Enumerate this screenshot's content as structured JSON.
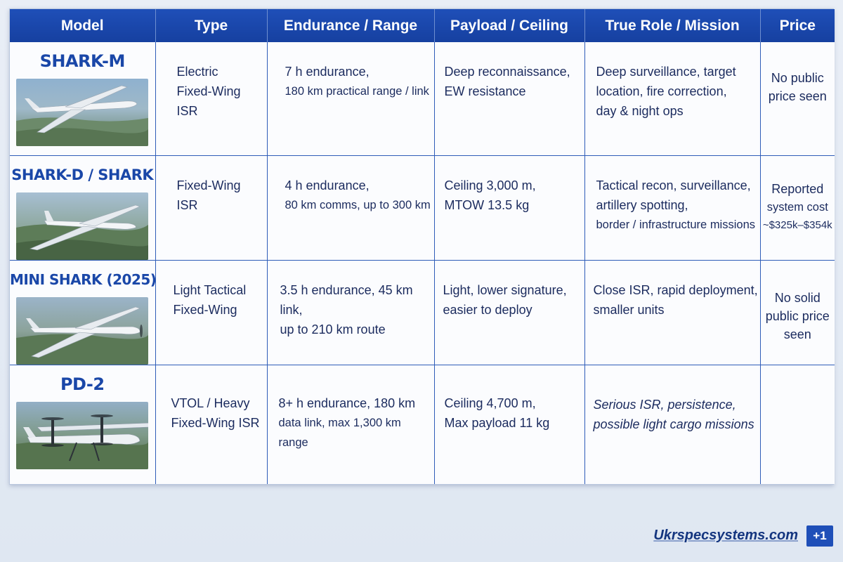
{
  "headers": {
    "model": "Model",
    "type": "Type",
    "endurance": "Endurance / Range",
    "payload": "Payload / Ceiling",
    "role": "True Role / Mission",
    "price": "Price"
  },
  "rows": [
    {
      "model": "SHARK-M",
      "type": [
        "Electric",
        "Fixed-Wing",
        "ISR"
      ],
      "endurance": [
        "7 h endurance,",
        "180 km practical range / link"
      ],
      "payload": [
        "Deep reconnaissance,",
        "EW resistance"
      ],
      "role": [
        "Deep surveillance, target",
        "location, fire correction,",
        "day & night ops"
      ],
      "price": [
        "No public",
        "price seen"
      ],
      "image_icon": "fixed-wing-drone-photo"
    },
    {
      "model": "SHARK-D / SHARK",
      "type": [
        "Fixed-Wing",
        "ISR"
      ],
      "endurance": [
        "4 h endurance,",
        "80 km comms, up to 300 km"
      ],
      "payload": [
        "Ceiling 3,000 m,",
        "MTOW 13.5 kg"
      ],
      "role": [
        "Tactical recon, surveillance,",
        "artillery spotting,",
        "border / infrastructure missions"
      ],
      "price": [
        "Reported",
        "system cost",
        "~$325k–$354k"
      ],
      "image_icon": "fixed-wing-drone-photo"
    },
    {
      "model": "MINI SHARK (2025)",
      "type": [
        "Light Tactical",
        "Fixed-Wing"
      ],
      "endurance": [
        "3.5 h endurance, 45 km link,",
        "up to 210 km route"
      ],
      "payload": [
        "Light, lower signature,",
        "easier to deploy"
      ],
      "role": [
        "Close ISR, rapid deployment,",
        "smaller units"
      ],
      "price": [
        "No solid",
        "public price",
        "seen"
      ],
      "image_icon": "fixed-wing-drone-photo"
    },
    {
      "model": "PD-2",
      "type": [
        "VTOL / Heavy",
        "Fixed-Wing ISR"
      ],
      "endurance": [
        "8+ h endurance, 180 km",
        "data link, max 1,300 km range"
      ],
      "payload": [
        "Ceiling 4,700 m,",
        "Max payload 11 kg"
      ],
      "role": [
        "Serious ISR, persistence,",
        "possible light cargo missions"
      ],
      "price": [],
      "image_icon": "vtol-drone-photo"
    }
  ],
  "footer": {
    "source": "Ukrspecsystems.com",
    "badge": "+1"
  },
  "colors": {
    "header_bg": "#1f4fb8",
    "model_text": "#1a47a8",
    "grid_line": "#2e5cb8"
  }
}
